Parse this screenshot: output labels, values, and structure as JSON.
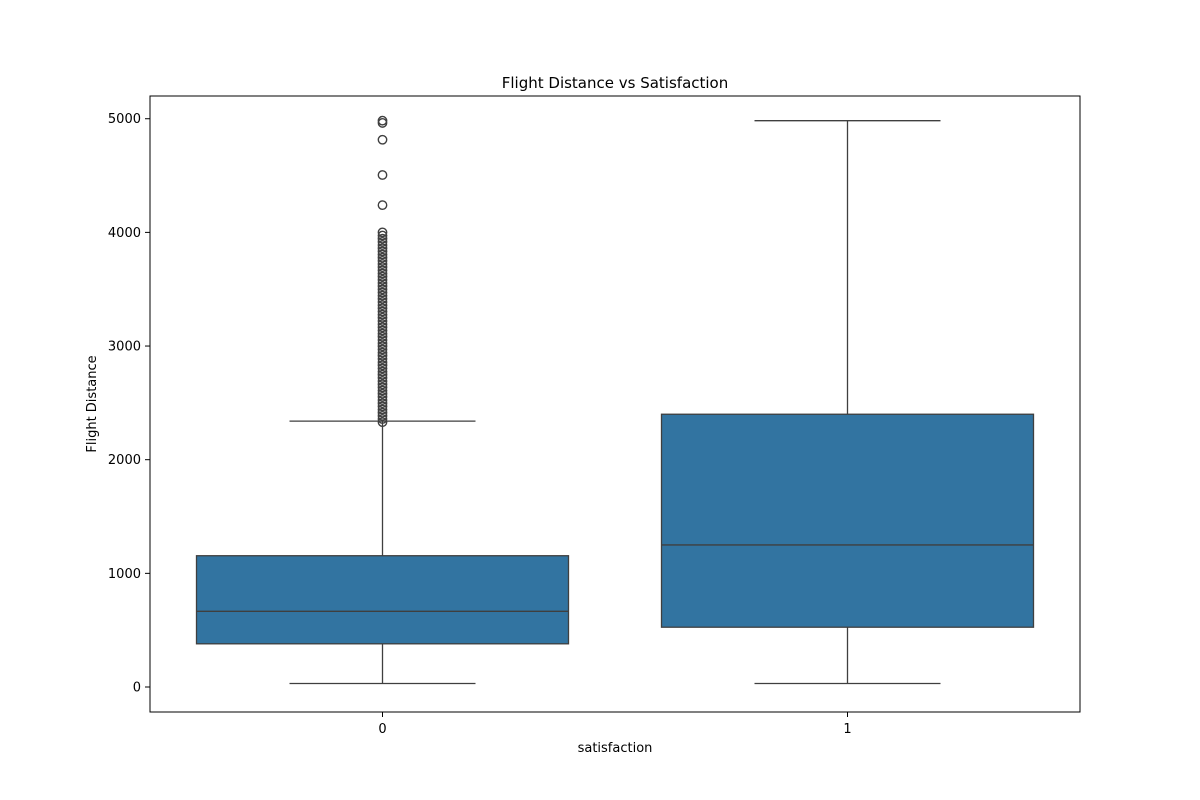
{
  "chart_data": {
    "type": "box",
    "title": "Flight Distance vs Satisfaction",
    "xlabel": "satisfaction",
    "ylabel": "Flight Distance",
    "categories": [
      "0",
      "1"
    ],
    "ylim": [
      -220,
      5200
    ],
    "yticks": [
      0,
      1000,
      2000,
      3000,
      4000,
      5000
    ],
    "grid": false,
    "box_color": "#3274a1",
    "line_color": "#3f3f3f",
    "boxes": [
      {
        "category": "0",
        "whisker_low": 31,
        "q1": 380,
        "median": 666,
        "q3": 1155,
        "whisker_high": 2339,
        "outlier_band": [
          2330,
          4000
        ],
        "outliers": [
          4240,
          4505,
          4815,
          4963,
          4983
        ]
      },
      {
        "category": "1",
        "whisker_low": 31,
        "q1": 526,
        "median": 1250,
        "q3": 2400,
        "whisker_high": 4983,
        "outlier_band": null,
        "outliers": []
      }
    ]
  }
}
